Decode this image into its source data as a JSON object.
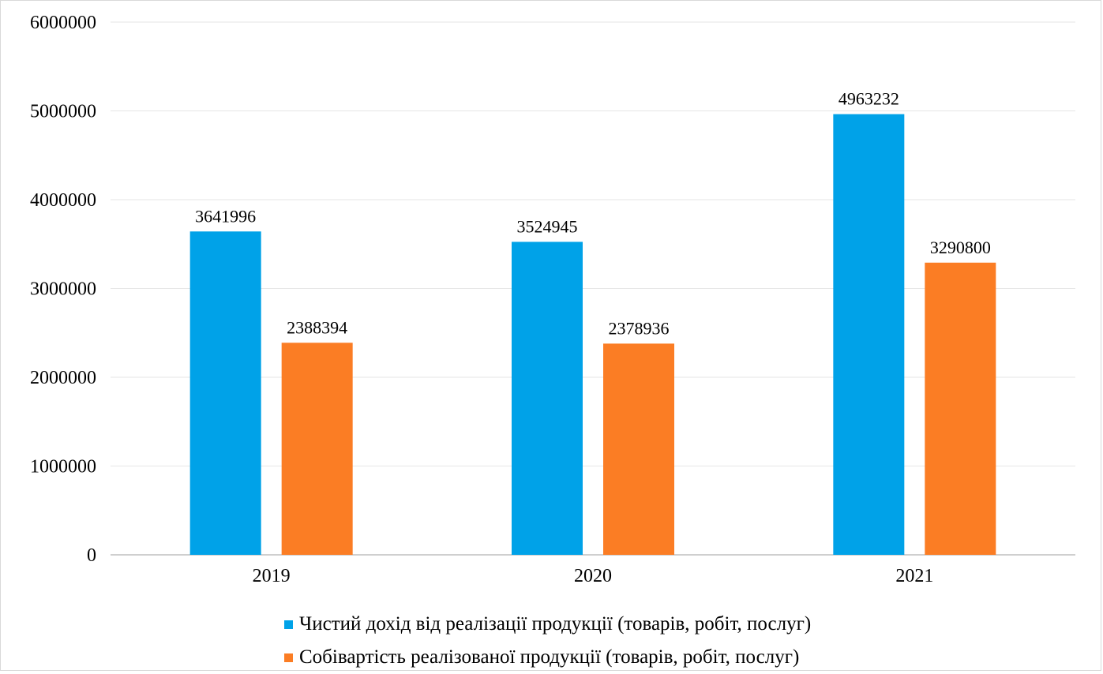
{
  "chart_data": {
    "type": "bar",
    "categories": [
      "2019",
      "2020",
      "2021"
    ],
    "series": [
      {
        "name": "Чистий дохід від реалізації продукції (товарів, робіт, послуг)",
        "values": [
          3641996,
          3524945,
          4963232
        ],
        "color": "#00a2e8"
      },
      {
        "name": "Собівартість реалізованої продукції (товарів, робіт, послуг)",
        "values": [
          2388394,
          2378936,
          3290800
        ],
        "color": "#fb7d24"
      }
    ],
    "ylim": [
      0,
      6000000
    ],
    "yticks": [
      "0",
      "1000000",
      "2000000",
      "3000000",
      "4000000",
      "5000000",
      "6000000"
    ],
    "data_labels": [
      [
        "3641996",
        "3524945",
        "4963232"
      ],
      [
        "2388394",
        "2378936",
        "3290800"
      ]
    ],
    "grid": true,
    "legend_position": "bottom"
  }
}
